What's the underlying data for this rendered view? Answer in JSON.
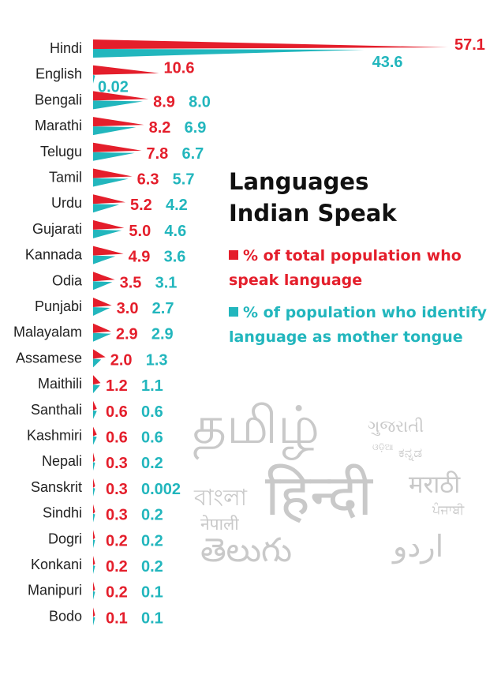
{
  "chart_data": {
    "type": "bar",
    "orientation": "horizontal",
    "title": "Languages Indian Speak",
    "categories": [
      "Hindi",
      "English",
      "Bengali",
      "Marathi",
      "Telugu",
      "Tamil",
      "Urdu",
      "Gujarati",
      "Kannada",
      "Odia",
      "Punjabi",
      "Malayalam",
      "Assamese",
      "Maithili",
      "Santhali",
      "Kashmiri",
      "Nepali",
      "Sanskrit",
      "Sindhi",
      "Dogri",
      "Konkani",
      "Manipuri",
      "Bodo"
    ],
    "series": [
      {
        "name": "% of total population who speak language",
        "color": "#e41e2b",
        "values": [
          57.1,
          10.6,
          8.9,
          8.2,
          7.8,
          6.3,
          5.2,
          5.0,
          4.9,
          3.5,
          3.0,
          2.9,
          2.0,
          1.2,
          0.6,
          0.6,
          0.3,
          0.3,
          0.3,
          0.2,
          0.2,
          0.2,
          0.1
        ],
        "labels": [
          "57.1",
          "10.6",
          "8.9",
          "8.2",
          "7.8",
          "6.3",
          "5.2",
          "5.0",
          "4.9",
          "3.5",
          "3.0",
          "2.9",
          "2.0",
          "1.2",
          "0.6",
          "0.6",
          "0.3",
          "0.3",
          "0.3",
          "0.2",
          "0.2",
          "0.2",
          "0.1"
        ]
      },
      {
        "name": "% of population who identify language as mother tongue",
        "color": "#22b6bd",
        "values": [
          43.6,
          0.02,
          8.0,
          6.9,
          6.7,
          5.7,
          4.2,
          4.6,
          3.6,
          3.1,
          2.7,
          2.9,
          1.3,
          1.1,
          0.6,
          0.6,
          0.2,
          0.002,
          0.2,
          0.2,
          0.2,
          0.1,
          0.1
        ],
        "labels": [
          "43.6",
          "0.02",
          "8.0",
          "6.9",
          "6.7",
          "5.7",
          "4.2",
          "4.6",
          "3.6",
          "3.1",
          "2.7",
          "2.9",
          "1.3",
          "1.1",
          "0.6",
          "0.6",
          "0.2",
          "0.002",
          "0.2",
          "0.2",
          "0.2",
          "0.1",
          "0.1"
        ]
      }
    ],
    "xlim": [
      0,
      57.1
    ],
    "grid": false,
    "legend": "right-middle"
  },
  "heading": {
    "line1": "Languages",
    "line2": "Indian Speak"
  },
  "legend": {
    "red": "% of total population who speak language",
    "teal": "% of population who identify language as mother tongue"
  },
  "watermark": {
    "tamil": "தமிழ்",
    "gujarati": "ગુજરાતી",
    "odia": "ଓଡ଼ିଆ",
    "kannada": "ಕನ್ನಡ",
    "bangla": "বাংলা",
    "hindi": "हिन्दी",
    "marathi": "मराठी",
    "punjabi": "ਪੰਜਾਬੀ",
    "nepali": "नेपाली",
    "telugu": "తెలుగు",
    "urdu": "اردو"
  }
}
